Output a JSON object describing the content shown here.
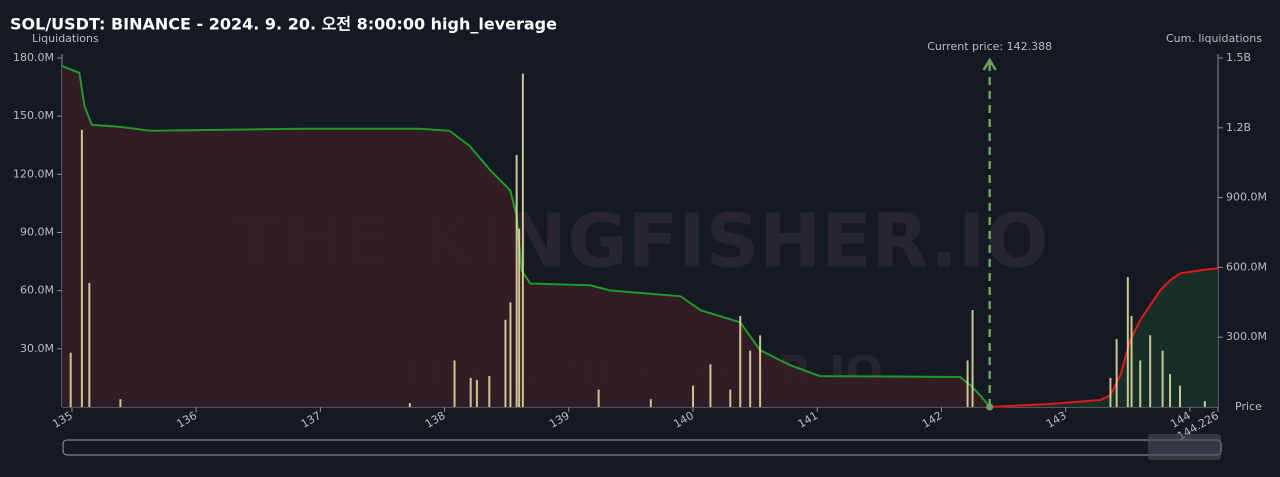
{
  "chart_data": {
    "type": "bar",
    "title": "SOL/USDT: BINANCE - 2024. 9. 20. 오전 8:00:00 high_leverage",
    "y_label": "Liquidations",
    "y2_label": "Cum. liquidations",
    "x_label": "Price",
    "watermark": "THE KINGFISHER.IO",
    "current_price": 142.388,
    "current_price_label": "Current price: 142.388",
    "xlim": [
      134.92,
      144.226
    ],
    "xticks": [
      135,
      136,
      137,
      138,
      139,
      140,
      141,
      142,
      143,
      144,
      144.226
    ],
    "ylim": [
      0,
      180000000
    ],
    "yticks": [
      {
        "value": 30000000,
        "label": "30.0M"
      },
      {
        "value": 60000000,
        "label": "60.0M"
      },
      {
        "value": 90000000,
        "label": "90.0M"
      },
      {
        "value": 120000000,
        "label": "120.0M"
      },
      {
        "value": 150000000,
        "label": "150.0M"
      },
      {
        "value": 180000000,
        "label": "180.0M"
      }
    ],
    "y2lim": [
      0,
      1500000000
    ],
    "y2ticks": [
      {
        "value": 300000000,
        "label": "300.0M"
      },
      {
        "value": 600000000,
        "label": "600.0M"
      },
      {
        "value": 900000000,
        "label": "900.0M"
      },
      {
        "value": 1200000000,
        "label": "1.2B"
      },
      {
        "value": 1500000000,
        "label": "1.5B"
      }
    ],
    "series": [
      {
        "type": "line",
        "axis": "y2",
        "color": "#1f9a2a",
        "fill": "#341c26",
        "x": [
          134.92,
          135.06,
          135.1,
          135.16,
          135.39,
          135.63,
          136.84,
          137.8,
          138.04,
          138.2,
          138.37,
          138.53,
          138.58,
          138.62,
          138.69,
          139.17,
          139.33,
          139.9,
          140.06,
          140.38,
          140.54,
          140.78,
          141.02,
          142.15,
          142.23,
          142.31,
          142.39
        ],
        "values": [
          1466000000,
          1436000000,
          1294000000,
          1213000000,
          1204000000,
          1187000000,
          1196000000,
          1196000000,
          1187000000,
          1123000000,
          1016000000,
          930000000,
          823000000,
          587000000,
          531000000,
          523000000,
          501000000,
          476000000,
          416000000,
          364000000,
          244000000,
          180000000,
          133000000,
          129000000,
          94000000,
          51000000,
          0
        ]
      },
      {
        "type": "line",
        "axis": "y2",
        "color": "#e01a1a",
        "fill": "#18302a",
        "x": [
          142.39,
          142.87,
          143.28,
          143.36,
          143.44,
          143.52,
          143.6,
          143.68,
          143.76,
          143.84,
          143.92,
          144.08,
          144.226
        ],
        "values": [
          0,
          13000000,
          30000000,
          51000000,
          137000000,
          287000000,
          373000000,
          437000000,
          501000000,
          544000000,
          574000000,
          587000000,
          596000000
        ]
      },
      {
        "type": "bar",
        "color": "#ece3a4",
        "x": [
          134.99,
          135.08,
          135.14,
          135.39,
          137.72,
          138.08,
          138.21,
          138.26,
          138.36,
          138.49,
          138.53,
          138.58,
          138.6,
          138.63,
          139.24,
          139.66,
          140.0,
          140.14,
          140.3,
          140.38,
          140.46,
          140.54,
          142.21,
          142.25,
          143.36,
          143.41,
          143.5,
          143.53,
          143.6,
          143.68,
          143.78,
          143.84,
          143.92,
          144.12
        ],
        "values": [
          28000000,
          143000000,
          64000000,
          4000000,
          2000000,
          24000000,
          15000000,
          14000000,
          16000000,
          45000000,
          54000000,
          130000000,
          92000000,
          172000000,
          9000000,
          4000000,
          11000000,
          22000000,
          9000000,
          47000000,
          29000000,
          37000000,
          24000000,
          50000000,
          15000000,
          35000000,
          67000000,
          47000000,
          24000000,
          37000000,
          29000000,
          17000000,
          11000000,
          3000000
        ]
      }
    ]
  }
}
